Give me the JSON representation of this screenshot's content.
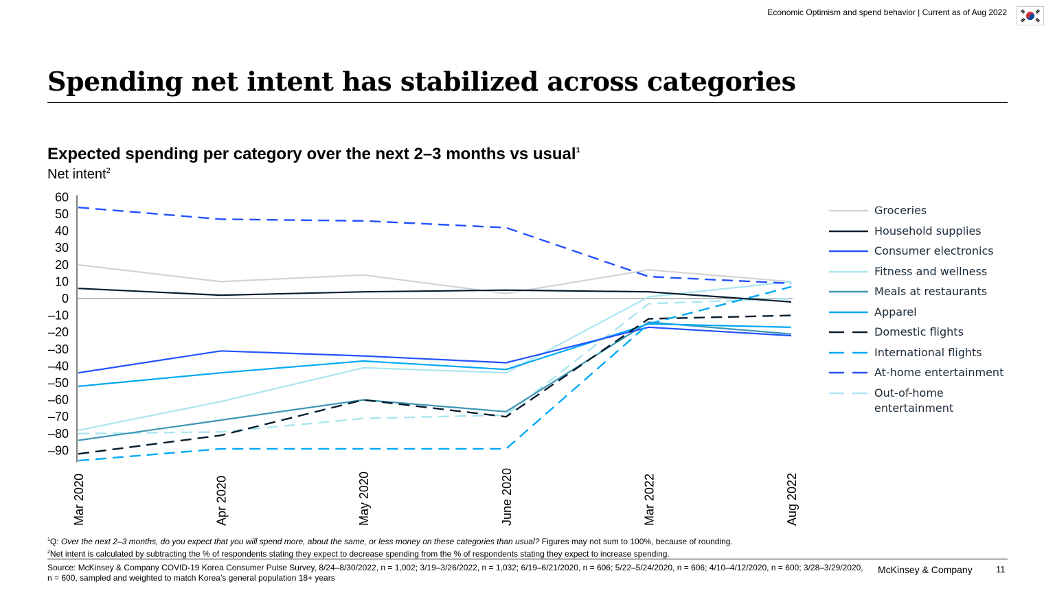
{
  "header": {
    "tracker": "Economic Optimism and spend behavior | Current as of Aug 2022",
    "flag_icon": "south-korea-flag-icon"
  },
  "title": "Spending net intent has stabilized across categories",
  "chart_data": {
    "type": "line",
    "title": "Expected spending per category over the next 2–3 months vs usual",
    "title_footnote": "1",
    "ylabel": "Net intent",
    "ylabel_footnote": "2",
    "categories": [
      "Mar 2020",
      "Apr 2020",
      "May 2020",
      "June 2020",
      "Mar 2022",
      "Aug 2022"
    ],
    "yticks": [
      60,
      50,
      40,
      30,
      20,
      10,
      0,
      -10,
      -20,
      -30,
      -40,
      -50,
      -60,
      -70,
      -80,
      -90
    ],
    "ytick_labels": [
      "60",
      "50",
      "40",
      "30",
      "20",
      "10",
      "0",
      "–10",
      "–20",
      "–30",
      "–40",
      "–50",
      "–60",
      "–70",
      "–80",
      "–90"
    ],
    "ylim": [
      -97,
      60
    ],
    "zero_line": true,
    "series": [
      {
        "name": "Groceries",
        "color": "#d3d3d3",
        "style": "solid",
        "values": [
          20,
          10,
          14,
          3,
          17,
          10
        ]
      },
      {
        "name": "Household supplies",
        "color": "#051c2c",
        "style": "solid",
        "values": [
          6,
          2,
          4,
          5,
          4,
          -2
        ]
      },
      {
        "name": "Consumer electronics",
        "color": "#2251ff",
        "style": "solid",
        "values": [
          -44,
          -31,
          -34,
          -38,
          -17,
          -22
        ]
      },
      {
        "name": "Fitness and wellness",
        "color": "#aae6f0",
        "style": "solid",
        "values": [
          -78,
          -61,
          -41,
          -44,
          1,
          10
        ]
      },
      {
        "name": "Meals at restaurants",
        "color": "#3c96b4",
        "style": "solid",
        "values": [
          -84,
          -72,
          -60,
          -67,
          -14,
          -21
        ]
      },
      {
        "name": "Apparel",
        "color": "#00a9f4",
        "style": "solid",
        "values": [
          -52,
          -44,
          -37,
          -42,
          -15,
          -17
        ]
      },
      {
        "name": "Domestic flights",
        "color": "#051c2c",
        "style": "dashed",
        "values": [
          -92,
          -81,
          -60,
          -70,
          -12,
          -10
        ]
      },
      {
        "name": "International flights",
        "color": "#00a9f4",
        "style": "dashed",
        "values": [
          -96,
          -89,
          -89,
          -89,
          -15,
          7
        ]
      },
      {
        "name": "At-home entertainment",
        "color": "#2251ff",
        "style": "dashed",
        "values": [
          54,
          47,
          46,
          42,
          13,
          9
        ]
      },
      {
        "name": "Out-of-home entertainment",
        "color": "#aae6f0",
        "style": "dashed",
        "values": [
          -80,
          -79,
          -71,
          -69,
          -3,
          0
        ]
      }
    ]
  },
  "legend_labels": [
    "Groceries",
    "Household supplies",
    "Consumer electronics",
    "Fitness and wellness",
    "Meals at restaurants",
    "Apparel",
    "Domestic flights",
    "International flights",
    "At-home entertainment",
    "Out-of-home\nentertainment"
  ],
  "footnotes": {
    "q_prefix": "Q: ",
    "q_question": "Over the next 2–3 months, do you expect that you will spend more, about the same, or less money on these categories than usual?",
    "q_suffix": " Figures may not sum to 100%, because of rounding.",
    "net_intent": "Net intent is calculated by subtracting the % of respondents stating they expect to decrease spending from the % of respondents stating they expect to increase spending."
  },
  "source": "Source: McKinsey & Company COVID-19 Korea Consumer Pulse Survey, 8/24–8/30/2022, n = 1,002; 3/19–3/26/2022, n = 1,032; 6/19–6/21/2020, n = 606; 5/22–5/24/2020, n = 606; 4/10–4/12/2020, n = 600; 3/28–3/29/2020, n = 600, sampled and weighted to match Korea’s general population 18+ years",
  "brand": "McKinsey & Company",
  "page_number": "11"
}
